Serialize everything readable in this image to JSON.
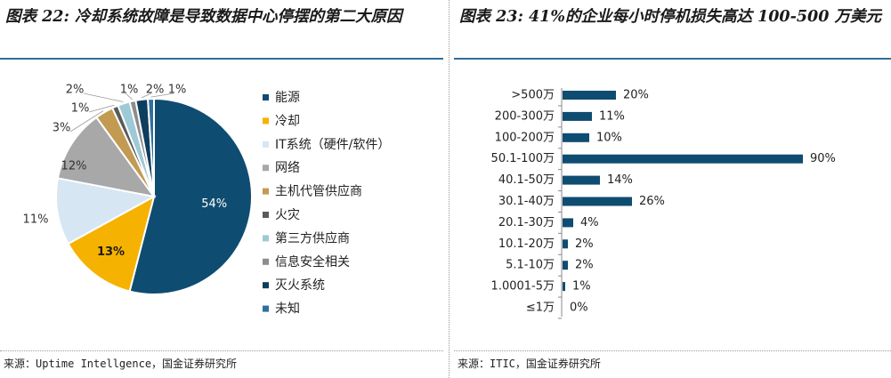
{
  "left": {
    "title": "图表 22: 冷却系统故障是导致数据中心停摆的第二大原因",
    "source": "来源：Uptime Intellgence，国金证券研究所",
    "chart_data": {
      "type": "pie",
      "slices": [
        {
          "name": "能源",
          "value": 54,
          "label": "54%",
          "color": "#0f4c71"
        },
        {
          "name": "冷却",
          "value": 13,
          "label": "13%",
          "color": "#f6b200"
        },
        {
          "name": "IT系统（硬件/软件）",
          "value": 11,
          "label": "11%",
          "color": "#d6e6f3"
        },
        {
          "name": "网络",
          "value": 12,
          "label": "12%",
          "color": "#a8a8a8"
        },
        {
          "name": "主机代管供应商",
          "value": 3,
          "label": "3%",
          "color": "#c29a52"
        },
        {
          "name": "火灾",
          "value": 1,
          "label": "1%",
          "color": "#5a5a5a"
        },
        {
          "name": "第三方供应商",
          "value": 2,
          "label": "2%",
          "color": "#9ec9d6"
        },
        {
          "name": "信息安全相关",
          "value": 1,
          "label": "1%",
          "color": "#8c8c8c"
        },
        {
          "name": "灭火系统",
          "value": 2,
          "label": "2%",
          "color": "#0e3e5d"
        },
        {
          "name": "未知",
          "value": 1,
          "label": "1%",
          "color": "#2f6f9c"
        }
      ],
      "legend_position": "right"
    }
  },
  "right": {
    "title": "图表 23: 41%的企业每小时停机损失高达 100-500 万美元",
    "source": "来源：ITIC，国金证券研究所",
    "chart_data": {
      "type": "bar",
      "orientation": "horizontal",
      "categories": [
        ">500万",
        "200-300万",
        "100-200万",
        "50.1-100万",
        "40.1-50万",
        "30.1-40万",
        "20.1-30万",
        "10.1-20万",
        "5.1-10万",
        "1.0001-5万",
        "≤1万"
      ],
      "values": [
        20,
        11,
        10,
        90,
        14,
        26,
        4,
        2,
        2,
        1,
        0
      ],
      "labels": [
        "20%",
        "11%",
        "10%",
        "90%",
        "14%",
        "26%",
        "4%",
        "2%",
        "2%",
        "1%",
        "0%"
      ],
      "bar_color": "#0f4c71",
      "xlim": [
        0,
        100
      ]
    }
  }
}
